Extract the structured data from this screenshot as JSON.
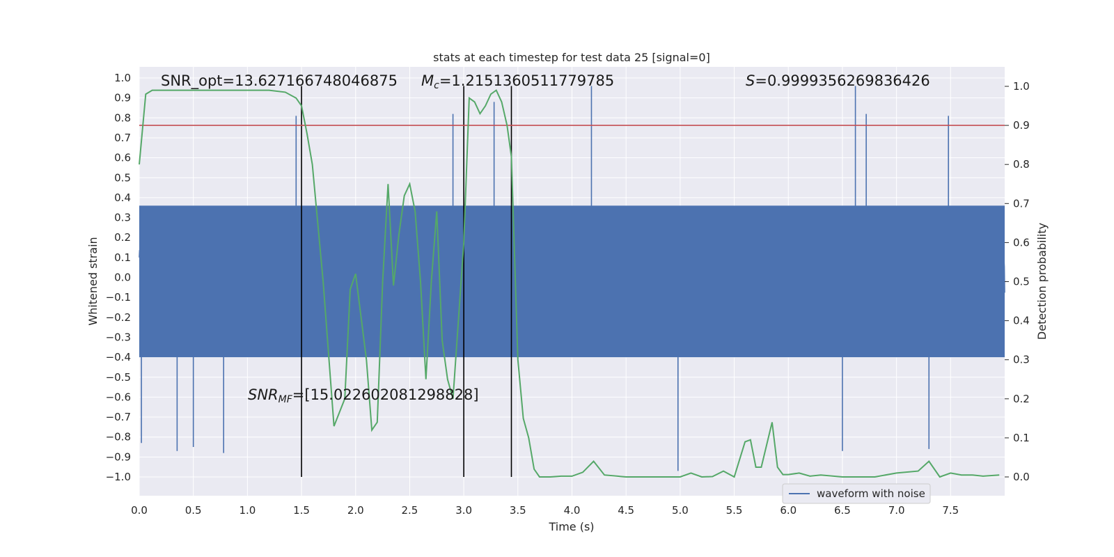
{
  "chart_data": {
    "type": "line",
    "title": "stats at each timestep for test data 25 [signal=0]",
    "xlabel": "Time (s)",
    "ylabel_left": "Whitened strain",
    "ylabel_right": "Detection probability",
    "xlim": [
      0.0,
      8.0
    ],
    "ylim_left": [
      -1.1,
      1.05
    ],
    "ylim_right": [
      -0.05,
      1.04
    ],
    "x_ticks": [
      "0.0",
      "0.5",
      "1.0",
      "1.5",
      "2.0",
      "2.5",
      "3.0",
      "3.5",
      "4.0",
      "4.5",
      "5.0",
      "5.5",
      "6.0",
      "6.5",
      "7.0",
      "7.5"
    ],
    "y_ticks_left": [
      "1.0",
      "0.9",
      "0.8",
      "0.7",
      "0.6",
      "0.5",
      "0.4",
      "0.3",
      "0.2",
      "0.1",
      "0.0",
      "−0.1",
      "−0.2",
      "−0.3",
      "−0.4",
      "−0.5",
      "−0.6",
      "−0.7",
      "−0.8",
      "−0.9",
      "−1.0"
    ],
    "y_ticks_right": [
      "1.0",
      "0.9",
      "0.8",
      "0.7",
      "0.6",
      "0.5",
      "0.4",
      "0.3",
      "0.2",
      "0.1",
      "0.0"
    ],
    "grid": true,
    "legend": {
      "position": "lower-right",
      "entries": [
        "waveform with noise"
      ]
    },
    "annotations": {
      "snr_opt": "SNR_opt=13.627166748046875",
      "mc_symbol": "M",
      "mc_sub": "c",
      "mc_value": "=1.2151360511779785",
      "s_symbol": "S",
      "s_value": "=0.9999356269836426",
      "snr_mf_symbol": "SNR",
      "snr_mf_sub": "MF",
      "snr_mf_value": "=[15.022602081298828]"
    },
    "threshold": 0.9,
    "vertical_lines_x": [
      1.5,
      3.0,
      3.44
    ],
    "series": [
      {
        "name": "waveform with noise",
        "axis": "left",
        "color": "#4c72b0",
        "description": "dense whitened strain noise sampled over 0–8 s, roughly ±0.5 with spikes to ±0.9",
        "envelope": {
          "typical_abs": 0.45,
          "max": 0.96,
          "min": -1.0
        },
        "spikes": [
          {
            "x": 0.02,
            "y": -0.83
          },
          {
            "x": 0.35,
            "y": -0.87
          },
          {
            "x": 0.5,
            "y": -0.85
          },
          {
            "x": 0.78,
            "y": -0.88
          },
          {
            "x": 1.45,
            "y": 0.81
          },
          {
            "x": 2.9,
            "y": 0.82
          },
          {
            "x": 3.28,
            "y": 0.88
          },
          {
            "x": 4.18,
            "y": 0.96
          },
          {
            "x": 4.98,
            "y": -0.97
          },
          {
            "x": 6.62,
            "y": 0.96
          },
          {
            "x": 6.72,
            "y": 0.82
          },
          {
            "x": 7.48,
            "y": 0.81
          },
          {
            "x": 7.3,
            "y": -0.86
          },
          {
            "x": 6.5,
            "y": -0.87
          }
        ]
      },
      {
        "name": "detection probability",
        "axis": "right",
        "color": "#55a868",
        "x": [
          0.0,
          0.06,
          0.12,
          0.25,
          0.5,
          1.0,
          1.2,
          1.35,
          1.45,
          1.5,
          1.55,
          1.6,
          1.7,
          1.8,
          1.9,
          1.95,
          2.0,
          2.1,
          2.15,
          2.2,
          2.25,
          2.3,
          2.35,
          2.4,
          2.45,
          2.5,
          2.55,
          2.6,
          2.65,
          2.7,
          2.75,
          2.8,
          2.85,
          2.9,
          2.95,
          3.0,
          3.05,
          3.1,
          3.15,
          3.2,
          3.25,
          3.3,
          3.35,
          3.4,
          3.44,
          3.5,
          3.55,
          3.6,
          3.65,
          3.7,
          3.8,
          3.9,
          4.0,
          4.1,
          4.2,
          4.3,
          4.5,
          5.0,
          5.1,
          5.2,
          5.3,
          5.4,
          5.5,
          5.6,
          5.65,
          5.7,
          5.75,
          5.85,
          5.9,
          5.95,
          6.0,
          6.1,
          6.2,
          6.3,
          6.5,
          6.8,
          7.0,
          7.2,
          7.3,
          7.4,
          7.5,
          7.6,
          7.7,
          7.8,
          7.95
        ],
        "values": [
          0.8,
          0.98,
          0.99,
          0.99,
          0.99,
          0.99,
          0.99,
          0.985,
          0.97,
          0.95,
          0.88,
          0.8,
          0.5,
          0.13,
          0.2,
          0.48,
          0.52,
          0.3,
          0.12,
          0.14,
          0.5,
          0.75,
          0.49,
          0.62,
          0.72,
          0.75,
          0.68,
          0.5,
          0.25,
          0.5,
          0.68,
          0.35,
          0.25,
          0.2,
          0.4,
          0.6,
          0.97,
          0.96,
          0.93,
          0.95,
          0.98,
          0.99,
          0.96,
          0.9,
          0.82,
          0.3,
          0.15,
          0.1,
          0.02,
          0.0,
          0.0,
          0.002,
          0.002,
          0.012,
          0.04,
          0.005,
          0.0,
          0.0,
          0.01,
          0.0,
          0.001,
          0.015,
          0.0,
          0.09,
          0.095,
          0.025,
          0.025,
          0.14,
          0.025,
          0.006,
          0.006,
          0.01,
          0.002,
          0.005,
          0.0,
          0.0,
          0.01,
          0.015,
          0.04,
          0.0,
          0.01,
          0.005,
          0.005,
          0.002,
          0.005
        ]
      }
    ]
  }
}
